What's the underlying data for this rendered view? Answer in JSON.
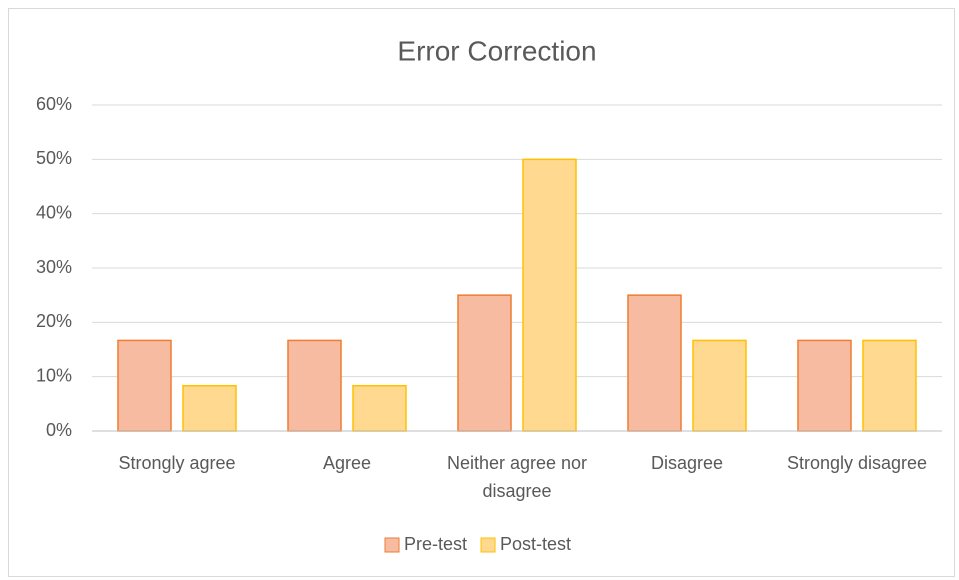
{
  "chart_data": {
    "type": "bar",
    "title": "Error Correction",
    "categories": [
      "Strongly agree",
      "Agree",
      "Neither agree nor disagree",
      "Disagree",
      "Strongly disagree"
    ],
    "series": [
      {
        "name": "Pre-test",
        "color": "#f7bba1",
        "edge": "#ed7d31",
        "values": [
          16.67,
          16.67,
          25,
          25,
          16.67
        ]
      },
      {
        "name": "Post-test",
        "color": "#ffd990",
        "edge": "#ffc000",
        "values": [
          8.33,
          8.33,
          50,
          16.67,
          16.67
        ]
      }
    ],
    "ylim": [
      0,
      60
    ],
    "yticks": [
      {
        "value": 0,
        "label": "0%"
      },
      {
        "value": 10,
        "label": "10%"
      },
      {
        "value": 20,
        "label": "20%"
      },
      {
        "value": 30,
        "label": "30%"
      },
      {
        "value": 40,
        "label": "40%"
      },
      {
        "value": 50,
        "label": "50%"
      },
      {
        "value": 60,
        "label": "60%"
      }
    ],
    "grid": true,
    "legend": "bottom"
  }
}
